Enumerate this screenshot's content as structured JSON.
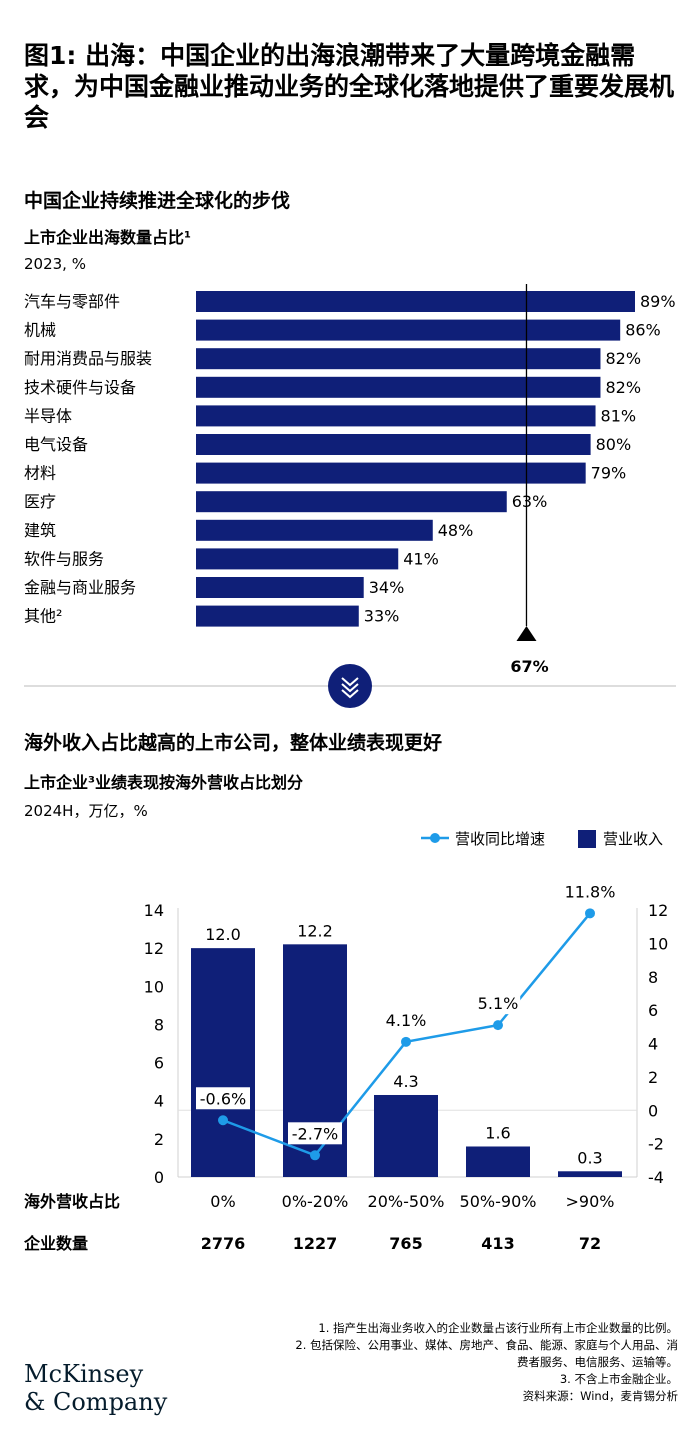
{
  "title": "图1: 出海：中国企业的出海浪潮带来了大量跨境金融需求，为中国金融业推动业务的全球化落地提供了重要发展机会",
  "section1": {
    "title": "中国企业持续推进全球化的步伐",
    "subtitle": "上市企业出海数量占比¹",
    "unit": "2023, %"
  },
  "section2": {
    "title": "海外收入占比越高的上市公司，整体业绩表现更好",
    "subtitle": "上市企业³业绩表现按海外营收占比划分",
    "unit": "2024H，万亿，%"
  },
  "colors": {
    "navy": "#0f1f78",
    "line": "#1e9be8",
    "divider": "#bbbbbb"
  },
  "chart_data": [
    {
      "type": "bar",
      "orientation": "horizontal",
      "title": "上市企业出海数量占比¹",
      "categories": [
        "汽车与零部件",
        "机械",
        "耐用消费品与服装",
        "技术硬件与设备",
        "半导体",
        "电气设备",
        "材料",
        "医疗",
        "建筑",
        "软件与服务",
        "金融与商业服务",
        "其他²"
      ],
      "values": [
        89,
        86,
        82,
        82,
        81,
        80,
        79,
        63,
        48,
        41,
        34,
        33
      ],
      "value_suffix": "%",
      "xlim": [
        0,
        100
      ],
      "reference_line": {
        "value": 67,
        "label": "67%"
      }
    },
    {
      "type": "bar+line",
      "title": "上市企业³业绩表现按海外营收占比划分",
      "categories": [
        "0%",
        "0%-20%",
        "20%-50%",
        "50%-90%",
        ">90%"
      ],
      "category_axis_label": "海外营收占比",
      "series": [
        {
          "name": "营业收入",
          "type": "bar",
          "axis": "left",
          "values": [
            12.0,
            12.2,
            4.3,
            1.6,
            0.3
          ],
          "labels": [
            "12.0",
            "12.2",
            "4.3",
            "1.6",
            "0.3"
          ]
        },
        {
          "name": "营收同比增速",
          "type": "line",
          "axis": "right",
          "values": [
            -0.6,
            -2.7,
            4.1,
            5.1,
            11.8
          ],
          "labels": [
            "-0.6%",
            "-2.7%",
            "4.1%",
            "5.1%",
            "11.8%"
          ]
        }
      ],
      "ylim_left": [
        0,
        14
      ],
      "yticks_left": [
        "0",
        "2",
        "4",
        "6",
        "8",
        "10",
        "12",
        "14"
      ],
      "ylim_right": [
        -4,
        12
      ],
      "yticks_right": [
        "-4",
        "-2",
        "0",
        "2",
        "4",
        "6",
        "8",
        "10",
        "12"
      ],
      "legend_position": "top-right",
      "company_count_label": "企业数量",
      "company_counts": [
        "2776",
        "1227",
        "765",
        "413",
        "72"
      ]
    }
  ],
  "footnotes": [
    "1.  指产生出海业务收入的企业数量占该行业所有上市企业数量的比例。",
    "2.  包括保险、公用事业、媒体、房地产、食品、能源、家庭与个人用品、消\n费者服务、电信服务、运输等。",
    "3.  不含上市金融企业。",
    "资料来源：Wind，麦肯锡分析"
  ],
  "logo": {
    "line1": "McKinsey",
    "line2": "& Company"
  }
}
